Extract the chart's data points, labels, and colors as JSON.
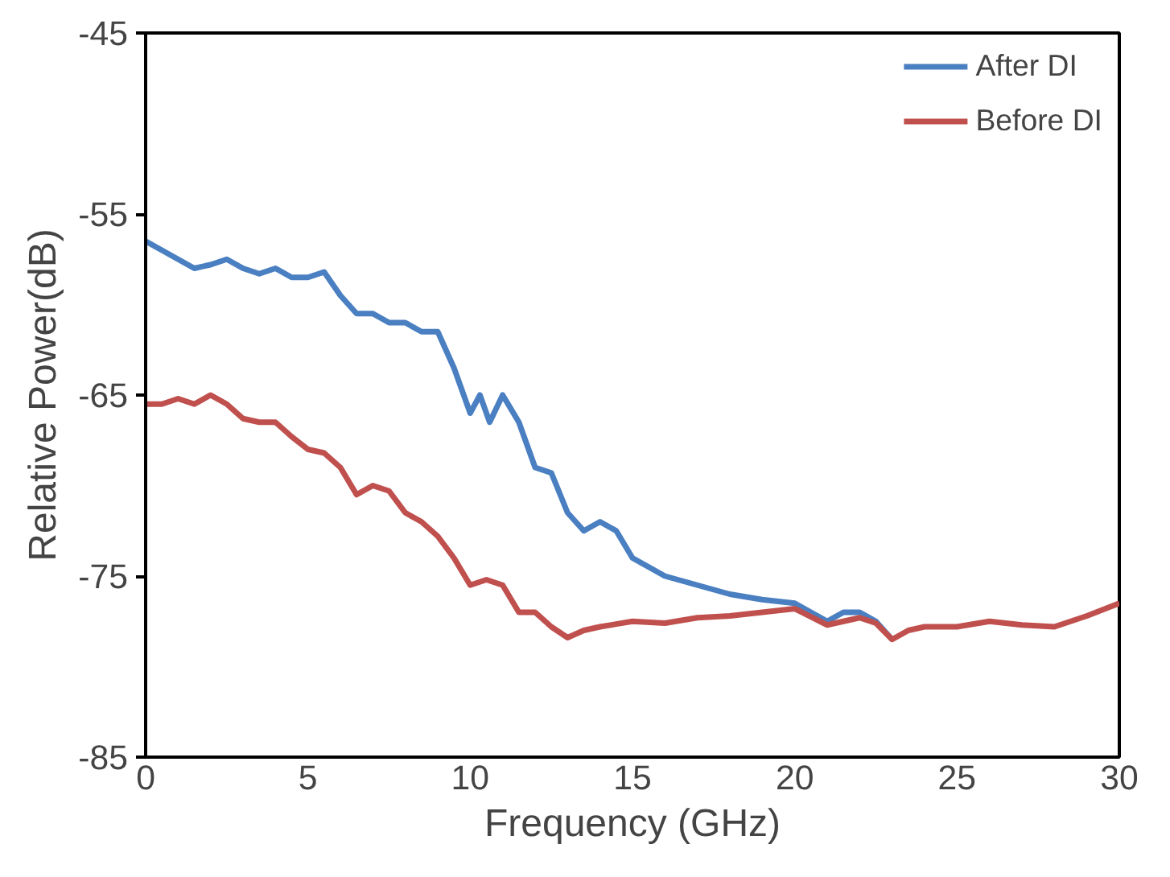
{
  "chart_data": {
    "type": "line",
    "xlabel": "Frequency (GHz)",
    "ylabel": "Relative Power(dB)",
    "xlim": [
      0,
      30
    ],
    "ylim": [
      -85,
      -45
    ],
    "xticks": [
      0,
      5,
      10,
      15,
      20,
      25,
      30
    ],
    "yticks": [
      -85,
      -75,
      -65,
      -55,
      -45
    ],
    "grid": false,
    "legend": "top right",
    "line_style": "solid",
    "marker": "none",
    "series": [
      {
        "name": "After DI",
        "color": "#4a7fc1",
        "x": [
          0,
          0.5,
          1,
          1.5,
          2,
          2.5,
          3,
          3.5,
          4,
          4.5,
          5,
          5.5,
          6,
          6.5,
          7,
          7.5,
          8,
          8.5,
          9,
          9.5,
          10,
          10.3,
          10.6,
          11,
          11.5,
          12,
          12.5,
          13,
          13.5,
          14,
          14.5,
          15,
          16,
          17,
          18,
          19,
          20,
          21,
          21.5,
          22,
          22.5,
          23
        ],
        "values": [
          -56.5,
          -57,
          -57.5,
          -58,
          -57.8,
          -57.5,
          -58,
          -58.3,
          -58,
          -58.5,
          -58.5,
          -58.2,
          -59.5,
          -60.5,
          -60.5,
          -61,
          -61,
          -61.5,
          -61.5,
          -63.5,
          -66,
          -65,
          -66.5,
          -65,
          -66.5,
          -69,
          -69.3,
          -71.5,
          -72.5,
          -72,
          -72.5,
          -74,
          -75,
          -75.5,
          -76,
          -76.3,
          -76.5,
          -77.5,
          -77,
          -77,
          -77.5,
          -78.5
        ]
      },
      {
        "name": "Before DI",
        "color": "#c0504d",
        "x": [
          0,
          0.5,
          1,
          1.5,
          2,
          2.5,
          3,
          3.5,
          4,
          4.5,
          5,
          5.5,
          6,
          6.5,
          7,
          7.5,
          8,
          8.5,
          9,
          9.5,
          10,
          10.5,
          11,
          11.5,
          12,
          12.5,
          13,
          13.5,
          14,
          15,
          16,
          17,
          18,
          19,
          20,
          21,
          22,
          22.5,
          23,
          23.5,
          24,
          25,
          26,
          27,
          28,
          29,
          30
        ],
        "values": [
          -65.5,
          -65.5,
          -65.2,
          -65.5,
          -65,
          -65.5,
          -66.3,
          -66.5,
          -66.5,
          -67.3,
          -68,
          -68.2,
          -69,
          -70.5,
          -70,
          -70.3,
          -71.5,
          -72,
          -72.8,
          -74,
          -75.5,
          -75.2,
          -75.5,
          -77,
          -77,
          -77.8,
          -78.4,
          -78,
          -77.8,
          -77.5,
          -77.6,
          -77.3,
          -77.2,
          -77,
          -76.8,
          -77.7,
          -77.3,
          -77.6,
          -78.5,
          -78,
          -77.8,
          -77.8,
          -77.5,
          -77.7,
          -77.8,
          -77.2,
          -76.5
        ]
      }
    ]
  }
}
